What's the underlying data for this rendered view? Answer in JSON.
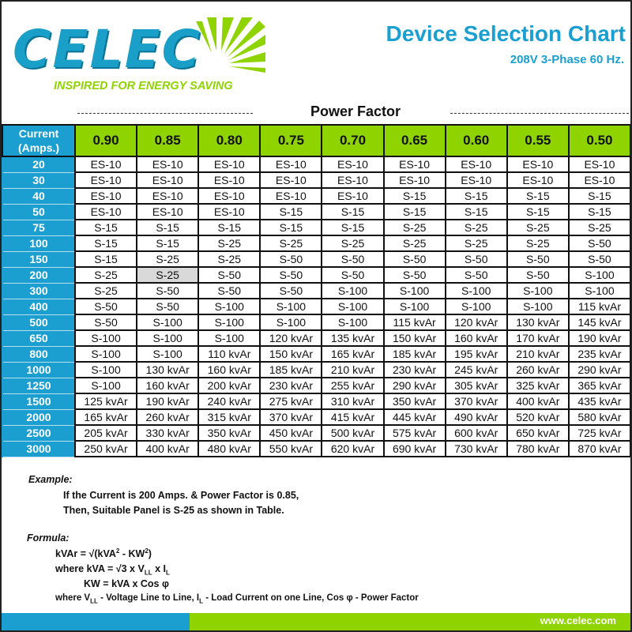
{
  "brand": {
    "name": "CELEC",
    "tagline": "INSPIRED FOR ENERGY SAVING",
    "blue": "#1a9fd0",
    "green": "#8fd400"
  },
  "header": {
    "title": "Device Selection Chart",
    "subtitle": "208V 3-Phase 60 Hz."
  },
  "table": {
    "group_label": "Power Factor",
    "corner_label_1": "Current",
    "corner_label_2": "(Amps.)",
    "power_factors": [
      "0.90",
      "0.85",
      "0.80",
      "0.75",
      "0.70",
      "0.65",
      "0.60",
      "0.55",
      "0.50"
    ],
    "rows": [
      {
        "amps": "20",
        "cells": [
          "ES-10",
          "ES-10",
          "ES-10",
          "ES-10",
          "ES-10",
          "ES-10",
          "ES-10",
          "ES-10",
          "ES-10"
        ]
      },
      {
        "amps": "30",
        "cells": [
          "ES-10",
          "ES-10",
          "ES-10",
          "ES-10",
          "ES-10",
          "ES-10",
          "ES-10",
          "ES-10",
          "ES-10"
        ]
      },
      {
        "amps": "40",
        "cells": [
          "ES-10",
          "ES-10",
          "ES-10",
          "ES-10",
          "ES-10",
          "S-15",
          "S-15",
          "S-15",
          "S-15"
        ]
      },
      {
        "amps": "50",
        "cells": [
          "ES-10",
          "ES-10",
          "ES-10",
          "S-15",
          "S-15",
          "S-15",
          "S-15",
          "S-15",
          "S-15"
        ]
      },
      {
        "amps": "75",
        "cells": [
          "S-15",
          "S-15",
          "S-15",
          "S-15",
          "S-15",
          "S-25",
          "S-25",
          "S-25",
          "S-25"
        ]
      },
      {
        "amps": "100",
        "cells": [
          "S-15",
          "S-15",
          "S-25",
          "S-25",
          "S-25",
          "S-25",
          "S-25",
          "S-25",
          "S-50"
        ]
      },
      {
        "amps": "150",
        "cells": [
          "S-15",
          "S-25",
          "S-25",
          "S-50",
          "S-50",
          "S-50",
          "S-50",
          "S-50",
          "S-50"
        ]
      },
      {
        "amps": "200",
        "cells": [
          "S-25",
          "S-25",
          "S-50",
          "S-50",
          "S-50",
          "S-50",
          "S-50",
          "S-50",
          "S-100"
        ]
      },
      {
        "amps": "300",
        "cells": [
          "S-25",
          "S-50",
          "S-50",
          "S-50",
          "S-100",
          "S-100",
          "S-100",
          "S-100",
          "S-100"
        ]
      },
      {
        "amps": "400",
        "cells": [
          "S-50",
          "S-50",
          "S-100",
          "S-100",
          "S-100",
          "S-100",
          "S-100",
          "S-100",
          "115 kvAr"
        ]
      },
      {
        "amps": "500",
        "cells": [
          "S-50",
          "S-100",
          "S-100",
          "S-100",
          "S-100",
          "115 kvAr",
          "120 kvAr",
          "130 kvAr",
          "145 kvAr"
        ]
      },
      {
        "amps": "650",
        "cells": [
          "S-100",
          "S-100",
          "S-100",
          "120 kvAr",
          "135 kvAr",
          "150 kvAr",
          "160 kvAr",
          "170 kvAr",
          "190 kvAr"
        ]
      },
      {
        "amps": "800",
        "cells": [
          "S-100",
          "S-100",
          "110 kvAr",
          "150 kvAr",
          "165 kvAr",
          "185 kvAr",
          "195 kvAr",
          "210 kvAr",
          "235 kvAr"
        ]
      },
      {
        "amps": "1000",
        "cells": [
          "S-100",
          "130 kvAr",
          "160 kvAr",
          "185 kvAr",
          "210 kvAr",
          "230 kvAr",
          "245 kvAr",
          "260 kvAr",
          "290 kvAr"
        ]
      },
      {
        "amps": "1250",
        "cells": [
          "S-100",
          "160 kvAr",
          "200 kvAr",
          "230 kvAr",
          "255 kvAr",
          "290 kvAr",
          "305 kvAr",
          "325 kvAr",
          "365 kvAr"
        ]
      },
      {
        "amps": "1500",
        "cells": [
          "125 kvAr",
          "190 kvAr",
          "240 kvAr",
          "275 kvAr",
          "310 kvAr",
          "350 kvAr",
          "370 kvAr",
          "400 kvAr",
          "435 kvAr"
        ]
      },
      {
        "amps": "2000",
        "cells": [
          "165 kvAr",
          "260 kvAr",
          "315 kvAr",
          "370 kvAr",
          "415 kvAr",
          "445 kvAr",
          "490 kvAr",
          "520 kvAr",
          "580 kvAr"
        ]
      },
      {
        "amps": "2500",
        "cells": [
          "205 kvAr",
          "330 kvAr",
          "350 kvAr",
          "450 kvAr",
          "500 kvAr",
          "575 kvAr",
          "600 kvAr",
          "650 kvAr",
          "725 kvAr"
        ]
      },
      {
        "amps": "3000",
        "cells": [
          "250 kvAr",
          "400 kvAr",
          "480 kvAr",
          "550 kvAr",
          "620 kvAr",
          "690 kvAr",
          "730 kvAr",
          "780 kvAr",
          "870 kvAr"
        ]
      }
    ],
    "highlight": {
      "row": 7,
      "col": 1
    }
  },
  "notes": {
    "example_label": "Example:",
    "example_line1": "If the Current is 200 Amps. & Power Factor is 0.85,",
    "example_line2": "Then, Suitable Panel is S-25 as shown in Table.",
    "formula_label": "Formula:"
  },
  "footer": {
    "url": "www.celec.com"
  }
}
